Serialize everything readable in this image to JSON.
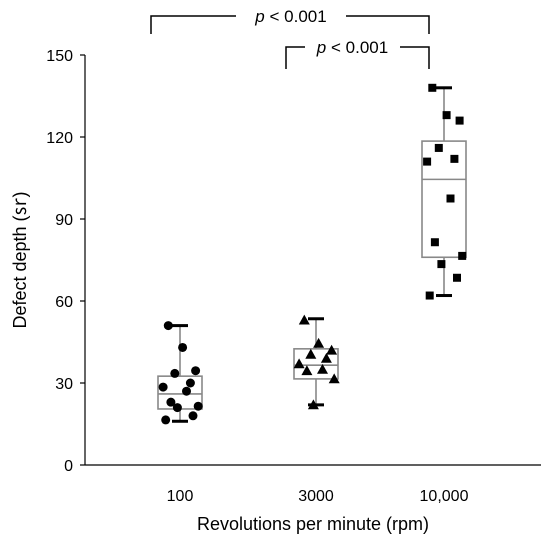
{
  "chart_data": {
    "type": "box",
    "xlabel": "Revolutions per minute (rpm)",
    "ylabel": "Defect depth (㏛)",
    "ylim": [
      0,
      150
    ],
    "yticks": [
      "0",
      "30",
      "60",
      "90",
      "120",
      "150"
    ],
    "categories": [
      "100",
      "3000",
      "10,000"
    ],
    "groups": [
      {
        "category": "100",
        "marker": "circle",
        "box": {
          "min": 16,
          "q1": 20.5,
          "median": 26,
          "q3": 32.5,
          "max": 51
        },
        "points": [
          51,
          43,
          34.5,
          33.5,
          30,
          28.5,
          27,
          23,
          21.5,
          21,
          18,
          16.5
        ]
      },
      {
        "category": "3000",
        "marker": "triangle",
        "box": {
          "min": 22,
          "q1": 31.5,
          "median": 36.5,
          "q3": 42.5,
          "max": 53.5
        },
        "points": [
          53,
          44.5,
          42,
          40.5,
          39,
          37,
          35,
          34.5,
          31.5,
          22
        ]
      },
      {
        "category": "10,000",
        "marker": "square",
        "box": {
          "min": 62,
          "q1": 76,
          "median": 104.5,
          "q3": 118.5,
          "max": 138
        },
        "points": [
          138,
          128,
          126,
          116,
          112,
          111,
          97.5,
          81.5,
          76.5,
          73.5,
          68.5,
          62
        ]
      }
    ],
    "annotations": [
      {
        "prefix": "p",
        "text": " < 0.001",
        "from": "100",
        "to": "10,000"
      },
      {
        "prefix": "p",
        "text": " < 0.001",
        "from": "3000",
        "to": "10,000"
      }
    ]
  }
}
